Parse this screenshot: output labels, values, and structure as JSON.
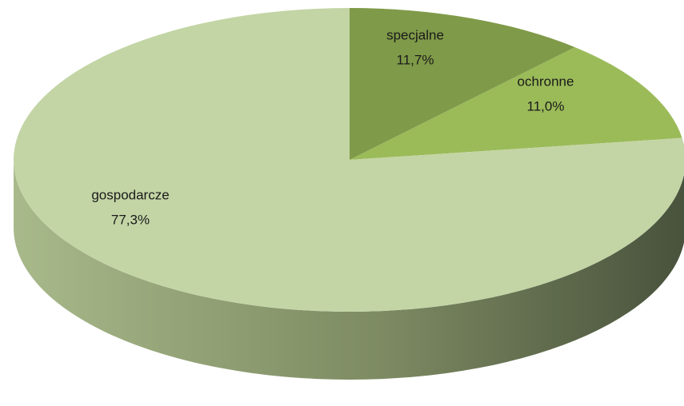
{
  "chart_data": {
    "type": "pie",
    "categories": [
      "specjalne",
      "ochronne",
      "gospodarcze"
    ],
    "values": [
      11.7,
      11.0,
      77.3
    ],
    "value_labels": [
      "11,7%",
      "11,0%",
      "77,3%"
    ],
    "colors": [
      "#7f9a48",
      "#9bbb59",
      "#c3d5a5"
    ]
  }
}
